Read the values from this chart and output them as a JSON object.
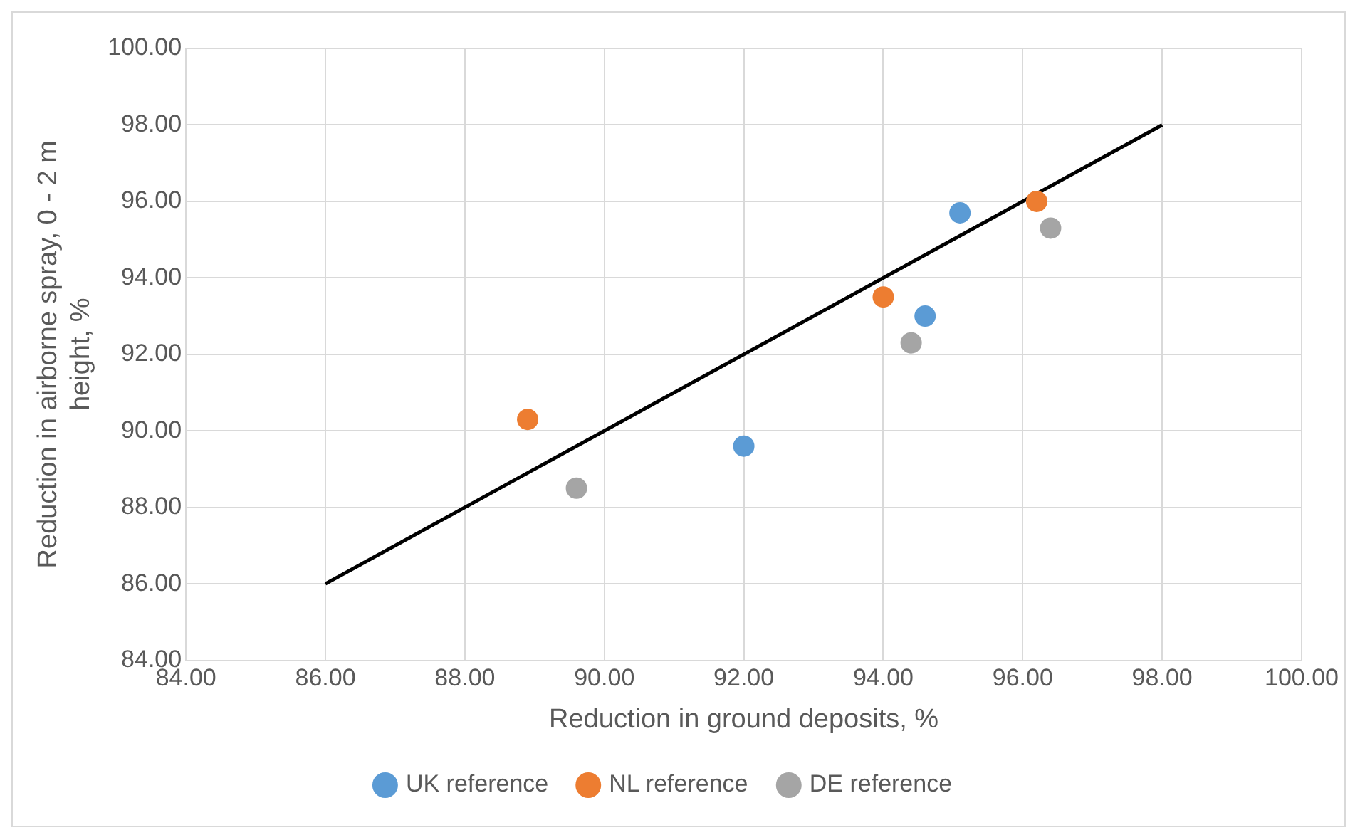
{
  "chart_data": {
    "type": "scatter",
    "xlabel": "Reduction in ground deposits, %",
    "ylabel": "Reduction in airborne spray, 0 - 2 m height, %",
    "xlim": [
      84,
      100
    ],
    "ylim": [
      84,
      100
    ],
    "xticks": [
      {
        "value": 84,
        "label": "84.00"
      },
      {
        "value": 86,
        "label": "86.00"
      },
      {
        "value": 88,
        "label": "88.00"
      },
      {
        "value": 90,
        "label": "90.00"
      },
      {
        "value": 92,
        "label": "92.00"
      },
      {
        "value": 94,
        "label": "94.00"
      },
      {
        "value": 96,
        "label": "96.00"
      },
      {
        "value": 98,
        "label": "98.00"
      },
      {
        "value": 100,
        "label": "100.00"
      }
    ],
    "yticks": [
      {
        "value": 84,
        "label": "84.00"
      },
      {
        "value": 86,
        "label": "86.00"
      },
      {
        "value": 88,
        "label": "88.00"
      },
      {
        "value": 90,
        "label": "90.00"
      },
      {
        "value": 92,
        "label": "92.00"
      },
      {
        "value": 94,
        "label": "94.00"
      },
      {
        "value": 96,
        "label": "96.00"
      },
      {
        "value": 98,
        "label": "98.00"
      },
      {
        "value": 100,
        "label": "100.00"
      }
    ],
    "grid": true,
    "legend": "bottom",
    "marker": "circle",
    "series": [
      {
        "name": "UK reference",
        "color": "#5b9bd5",
        "x": [
          95.1,
          94.6,
          92.0
        ],
        "values": [
          95.7,
          93.0,
          89.6
        ]
      },
      {
        "name": "NL reference",
        "color": "#ed7d31",
        "x": [
          96.2,
          94.0,
          88.9
        ],
        "values": [
          96.0,
          93.5,
          90.3
        ]
      },
      {
        "name": "DE reference",
        "color": "#a5a5a5",
        "x": [
          96.4,
          94.4,
          89.6
        ],
        "values": [
          95.3,
          92.3,
          88.5
        ]
      },
      {
        "type": "line",
        "marker": "none",
        "color": "#000000",
        "x": [
          86,
          98
        ],
        "values": [
          86,
          98
        ]
      }
    ]
  }
}
